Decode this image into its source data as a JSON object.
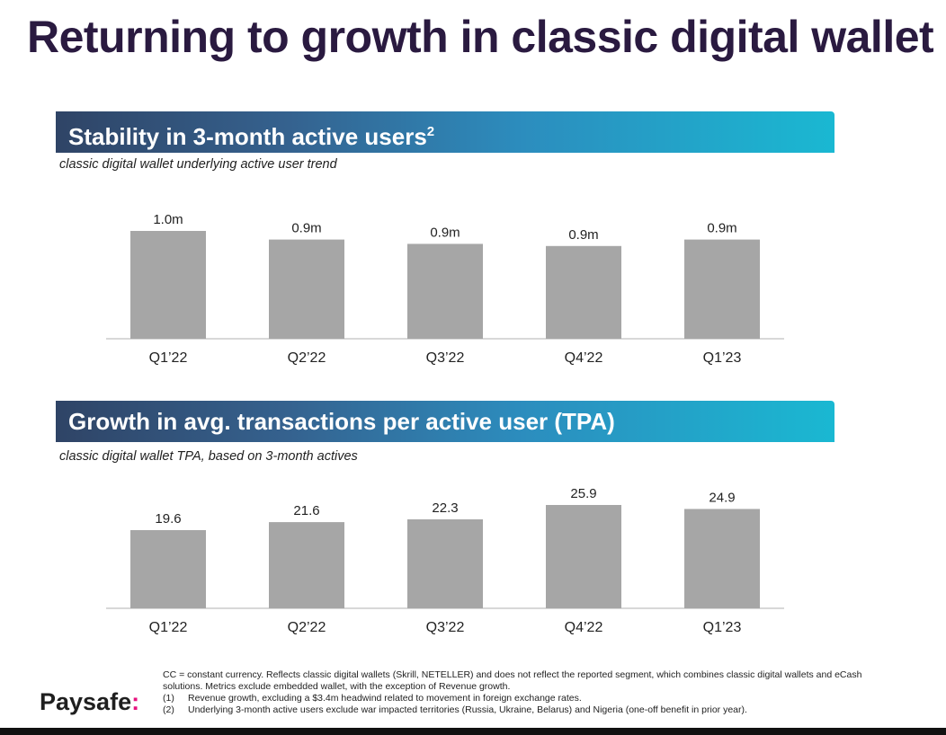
{
  "title": "Returning to growth in classic digital wallet",
  "sections": [
    {
      "heading": "Stability in 3-month active users",
      "heading_sup": "2",
      "subtitle": "classic digital wallet underlying active user trend"
    },
    {
      "heading": "Growth in avg. transactions per active user (TPA)",
      "heading_sup": "",
      "subtitle": "classic digital wallet TPA, based on 3-month actives"
    }
  ],
  "chart_data": [
    {
      "type": "bar",
      "categories": [
        "Q1’22",
        "Q2’22",
        "Q3’22",
        "Q4’22",
        "Q1’23"
      ],
      "values": [
        1.0,
        0.92,
        0.88,
        0.86,
        0.92
      ],
      "labels": [
        "1.0m",
        "0.9m",
        "0.9m",
        "0.9m",
        "0.9m"
      ],
      "ylim": [
        0,
        1.0
      ],
      "title": "",
      "xlabel": "",
      "ylabel": "",
      "bar_color": "#a6a6a6"
    },
    {
      "type": "bar",
      "categories": [
        "Q1’22",
        "Q2’22",
        "Q3’22",
        "Q4’22",
        "Q1’23"
      ],
      "values": [
        19.6,
        21.6,
        22.3,
        25.9,
        24.9
      ],
      "labels": [
        "19.6",
        "21.6",
        "22.3",
        "25.9",
        "24.9"
      ],
      "ylim": [
        0,
        25.9
      ],
      "title": "",
      "xlabel": "",
      "ylabel": "",
      "bar_color": "#a6a6a6"
    }
  ],
  "footer": {
    "brand": "Paysafe",
    "brand_suffix": ":",
    "note_cc": "CC = constant currency. Reflects classic digital wallets (Skrill, NETELLER) and does not reflect the reported segment, which combines classic digital wallets and eCash solutions. Metrics exclude embedded wallet, with the exception of Revenue growth.",
    "notes": [
      {
        "num": "(1)",
        "text": "Revenue growth, excluding a $3.4m headwind related to movement in foreign exchange rates."
      },
      {
        "num": "(2)",
        "text": "Underlying 3-month active users exclude war impacted territories (Russia, Ukraine, Belarus) and Nigeria (one-off benefit in prior year)."
      }
    ]
  },
  "colors": {
    "title": "#2a1a40",
    "banner_start": "#2f4466",
    "banner_end": "#1ab8d2",
    "bar": "#a6a6a6",
    "brand_accent": "#e6127e"
  }
}
